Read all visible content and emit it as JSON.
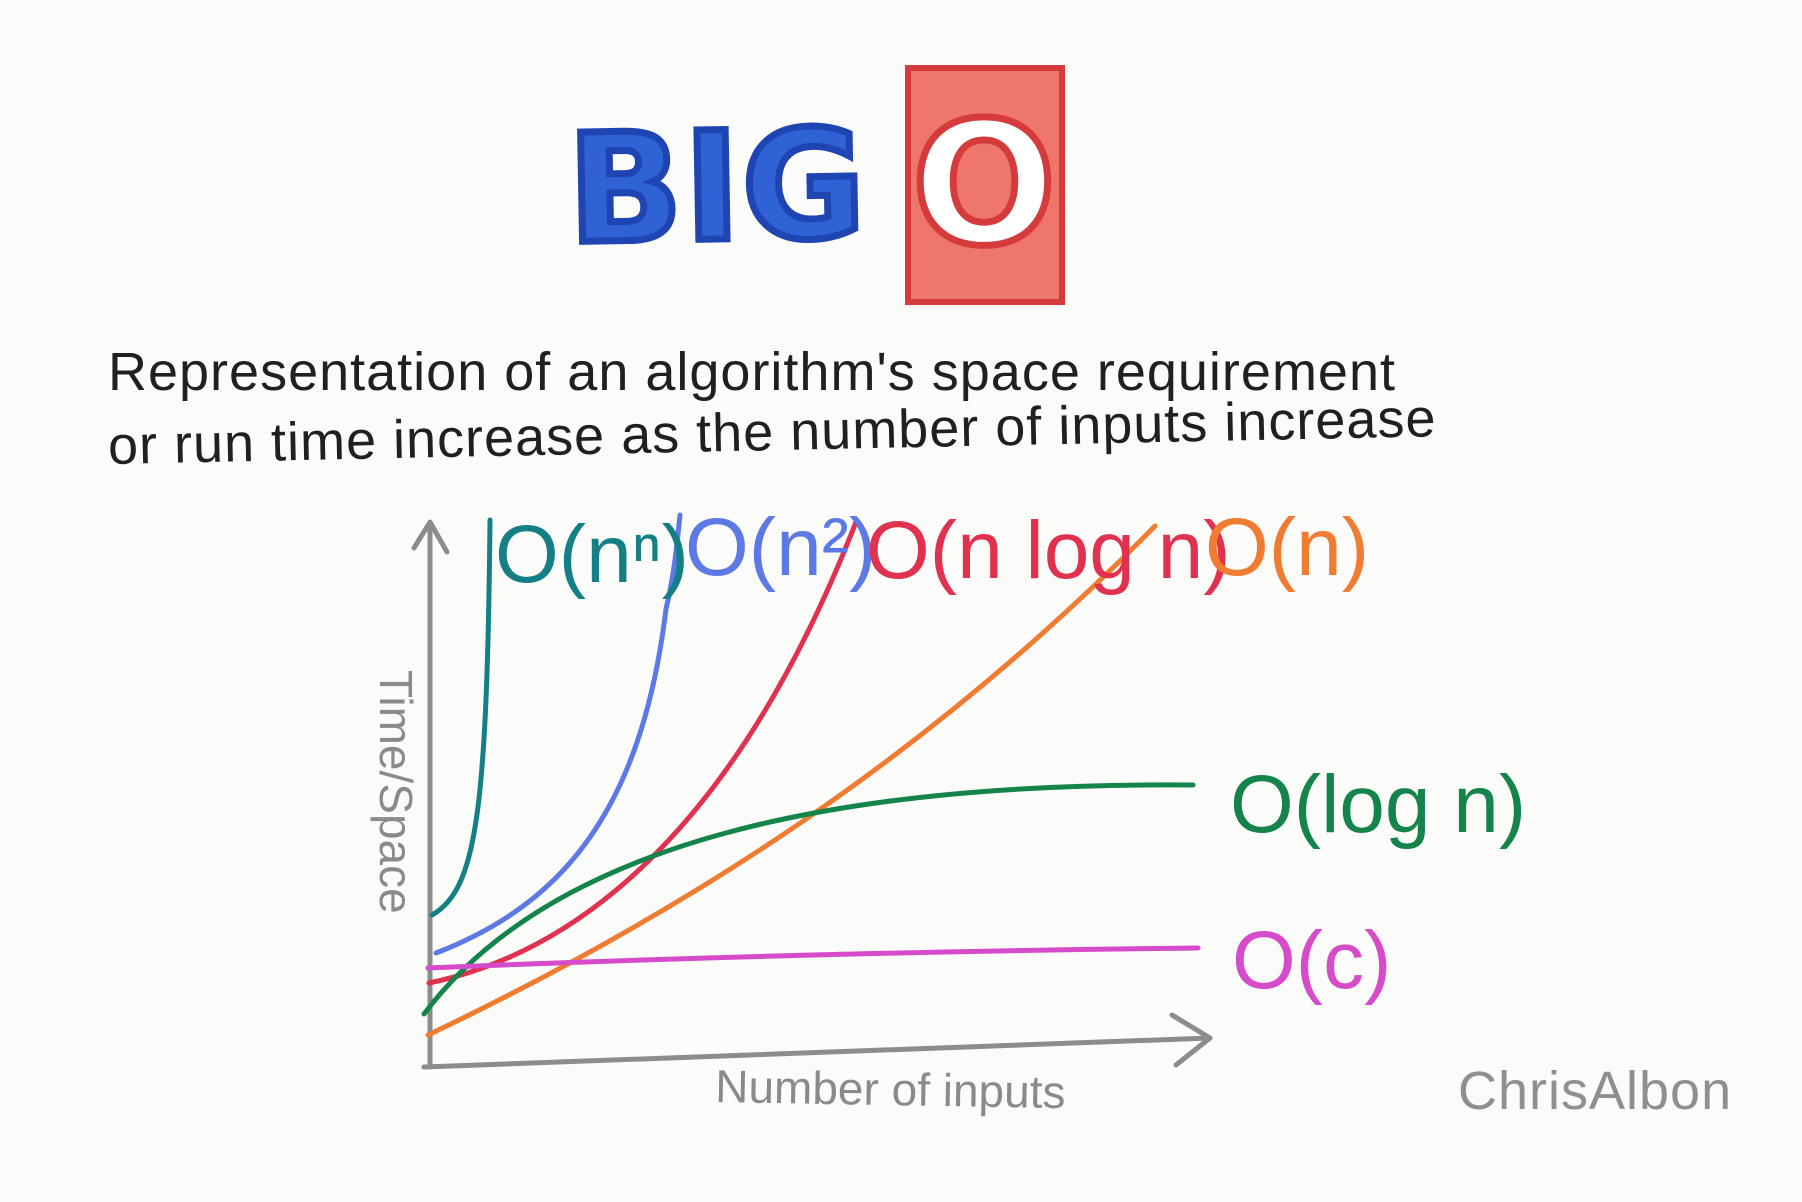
{
  "title": {
    "big": "BIG",
    "o": "O"
  },
  "description": {
    "line1": "Representation of an algorithm's space requirement",
    "line2": "or run time increase as the number of inputs increase"
  },
  "axes": {
    "x_label": "Number of inputs",
    "y_label": "Time/Space"
  },
  "credit": "ChrisAlbon",
  "curves": [
    {
      "id": "o-n-n",
      "label": "O(nⁿ)",
      "color": "#147f85",
      "shape": "exponential"
    },
    {
      "id": "o-n-squared",
      "label": "O(n²)",
      "color": "#5d79e5",
      "shape": "quadratic"
    },
    {
      "id": "o-n-log-n",
      "label": "O(n log n)",
      "color": "#e0324f",
      "shape": "linearithmic"
    },
    {
      "id": "o-n",
      "label": "O(n)",
      "color": "#f07c32",
      "shape": "linear"
    },
    {
      "id": "o-log-n",
      "label": "O(log n)",
      "color": "#14844b",
      "shape": "logarithmic"
    },
    {
      "id": "o-c",
      "label": "O(c)",
      "color": "#d64bc9",
      "shape": "constant"
    }
  ],
  "colors": {
    "axis": "#8c8c8c",
    "text": "#202020"
  }
}
